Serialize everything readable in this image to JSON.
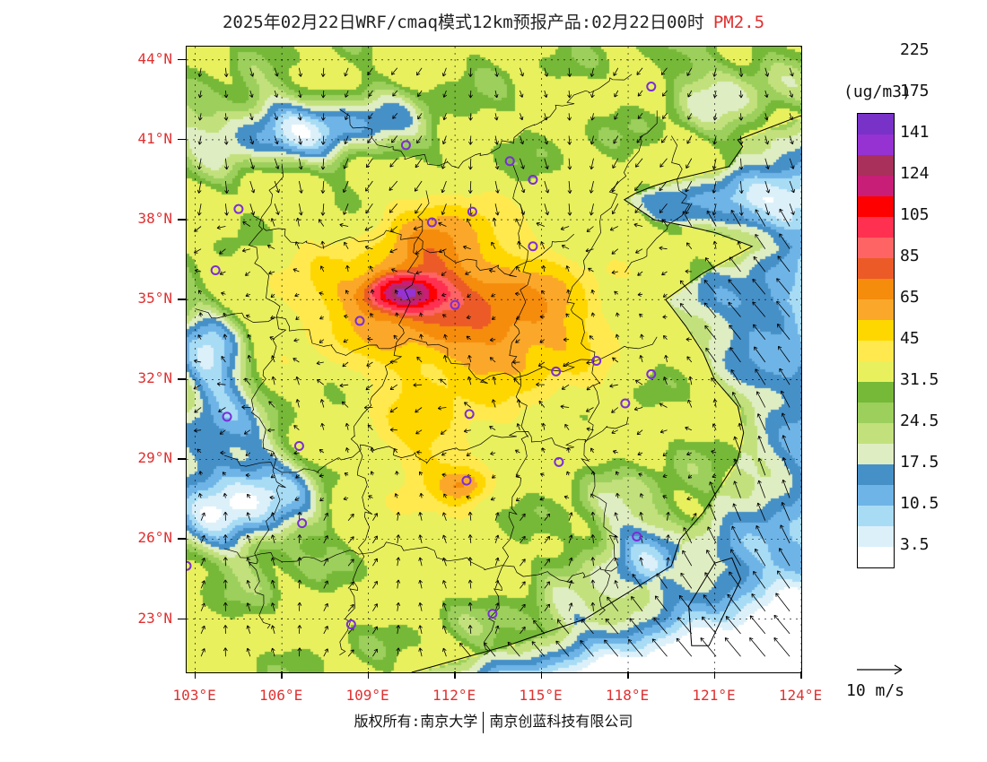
{
  "title": {
    "text": "2025年02月22日WRF/cmaq模式12km预报产品:02月22日00时",
    "species": "PM2.5"
  },
  "map": {
    "lon_min": 102.7,
    "lon_max": 124.0,
    "lat_min": 21.0,
    "lat_max": 44.5,
    "lat_labels": [
      "23°N",
      "26°N",
      "29°N",
      "32°N",
      "35°N",
      "38°N",
      "41°N",
      "44°N"
    ],
    "lat_values": [
      23,
      26,
      29,
      32,
      35,
      38,
      41,
      44
    ],
    "lon_labels": [
      "103°E",
      "106°E",
      "109°E",
      "112°E",
      "115°E",
      "118°E",
      "121°E",
      "124°E"
    ],
    "lon_values": [
      103,
      106,
      109,
      112,
      115,
      118,
      121,
      124
    ],
    "cities": [
      [
        118.8,
        43.0
      ],
      [
        110.3,
        40.8
      ],
      [
        113.9,
        40.2
      ],
      [
        114.7,
        39.5
      ],
      [
        104.5,
        38.4
      ],
      [
        111.2,
        37.9
      ],
      [
        112.6,
        38.3
      ],
      [
        114.7,
        37.0
      ],
      [
        103.7,
        36.1
      ],
      [
        108.7,
        34.2
      ],
      [
        112.0,
        34.8
      ],
      [
        115.5,
        32.3
      ],
      [
        116.9,
        32.7
      ],
      [
        118.8,
        32.2
      ],
      [
        117.9,
        31.1
      ],
      [
        104.1,
        30.6
      ],
      [
        106.6,
        29.5
      ],
      [
        112.5,
        30.7
      ],
      [
        115.6,
        28.9
      ],
      [
        112.4,
        28.2
      ],
      [
        106.7,
        26.6
      ],
      [
        118.3,
        26.1
      ],
      [
        102.7,
        25.0
      ],
      [
        108.4,
        22.8
      ],
      [
        113.3,
        23.2
      ]
    ],
    "colors": {
      "city_marker": "#7a2ed6",
      "land_base": "#f2f07a",
      "sea": "#ffffff",
      "boundary": "#000000"
    }
  },
  "colorbar": {
    "units": "(ug/m3)",
    "colors": [
      "#ffffff",
      "#dcf0fa",
      "#a8dcf5",
      "#6fb4e6",
      "#4690c8",
      "#dfedc2",
      "#c2e17c",
      "#9ccf5c",
      "#76b838",
      "#e8f05e",
      "#ffe94e",
      "#ffd700",
      "#fba82a",
      "#f58c0c",
      "#ec5a28",
      "#ff6464",
      "#ff3050",
      "#ff0000",
      "#c81e78",
      "#a8305a",
      "#9632d2",
      "#7832c8"
    ],
    "labels": [
      "3.5",
      "10.5",
      "17.5",
      "24.5",
      "31.5",
      "45",
      "65",
      "85",
      "105",
      "124",
      "141",
      "175",
      "225"
    ]
  },
  "wind_reference": {
    "label": "10 m/s"
  },
  "footer": {
    "left": "版权所有:南京大学",
    "right": "南京创蓝科技有限公司"
  }
}
